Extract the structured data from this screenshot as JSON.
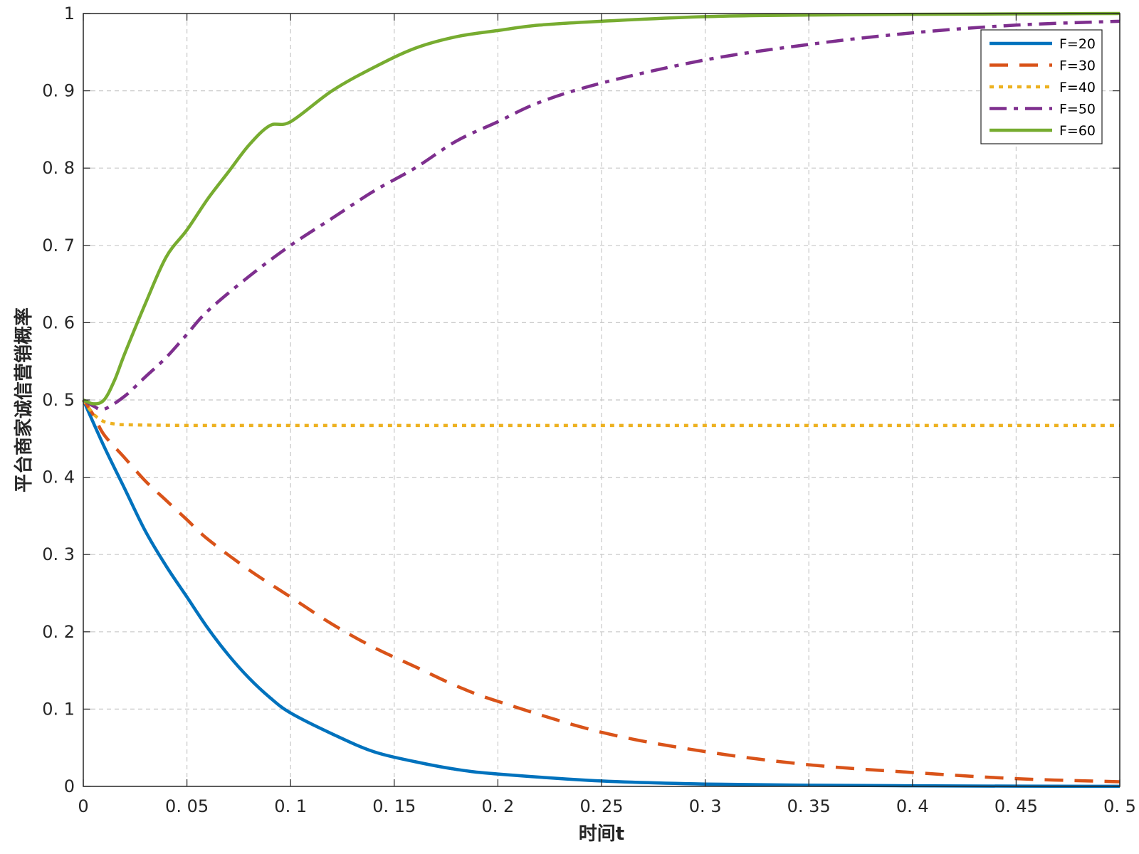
{
  "chart_data": {
    "type": "line",
    "title": "",
    "xlabel": "时间t",
    "ylabel": "平台商家诚信营销概率",
    "xlim": [
      0,
      0.5
    ],
    "ylim": [
      0,
      1
    ],
    "grid": true,
    "legend_position": "top-right",
    "x_ticks": [
      0,
      0.05,
      0.1,
      0.15,
      0.2,
      0.25,
      0.3,
      0.35,
      0.4,
      0.45,
      0.5
    ],
    "x_tick_labels": [
      "0",
      "0. 05",
      "0. 1",
      "0. 15",
      "0. 2",
      "0. 25",
      "0. 3",
      "0. 35",
      "0. 4",
      "0. 45",
      "0. 5"
    ],
    "y_ticks": [
      0,
      0.1,
      0.2,
      0.3,
      0.4,
      0.5,
      0.6,
      0.7,
      0.8,
      0.9,
      1
    ],
    "y_tick_labels": [
      "0",
      "0. 1",
      "0. 2",
      "0. 3",
      "0. 4",
      "0. 5",
      "0. 6",
      "0. 7",
      "0. 8",
      "0. 9",
      "1"
    ],
    "series": [
      {
        "name": "F=20",
        "color": "#0072BD",
        "dash": "solid",
        "x": [
          0,
          0.01,
          0.02,
          0.03,
          0.04,
          0.05,
          0.06,
          0.07,
          0.08,
          0.09,
          0.1,
          0.12,
          0.14,
          0.16,
          0.18,
          0.2,
          0.25,
          0.3,
          0.35,
          0.4,
          0.45,
          0.5
        ],
        "y": [
          0.5,
          0.44,
          0.385,
          0.33,
          0.285,
          0.245,
          0.205,
          0.17,
          0.14,
          0.115,
          0.095,
          0.068,
          0.045,
          0.032,
          0.022,
          0.016,
          0.007,
          0.003,
          0.0015,
          0.0008,
          0.0003,
          0.0001
        ]
      },
      {
        "name": "F=30",
        "color": "#D95319",
        "dash": "dashed",
        "x": [
          0,
          0.005,
          0.01,
          0.02,
          0.03,
          0.04,
          0.05,
          0.06,
          0.08,
          0.1,
          0.12,
          0.14,
          0.16,
          0.18,
          0.2,
          0.25,
          0.3,
          0.35,
          0.4,
          0.45,
          0.5
        ],
        "y": [
          0.5,
          0.48,
          0.455,
          0.425,
          0.395,
          0.37,
          0.345,
          0.32,
          0.28,
          0.245,
          0.21,
          0.18,
          0.155,
          0.13,
          0.11,
          0.07,
          0.045,
          0.028,
          0.018,
          0.01,
          0.006
        ]
      },
      {
        "name": "F=40",
        "color": "#EDB120",
        "dash": "dotted",
        "x": [
          0,
          0.003,
          0.006,
          0.01,
          0.015,
          0.02,
          0.05,
          0.1,
          0.2,
          0.3,
          0.4,
          0.5
        ],
        "y": [
          0.5,
          0.488,
          0.479,
          0.472,
          0.469,
          0.468,
          0.467,
          0.467,
          0.467,
          0.467,
          0.467,
          0.467
        ]
      },
      {
        "name": "F=50",
        "color": "#7E2F8E",
        "dash": "dashdot",
        "x": [
          0,
          0.005,
          0.01,
          0.02,
          0.03,
          0.04,
          0.05,
          0.06,
          0.08,
          0.1,
          0.12,
          0.14,
          0.16,
          0.18,
          0.2,
          0.22,
          0.25,
          0.3,
          0.35,
          0.4,
          0.45,
          0.5
        ],
        "y": [
          0.5,
          0.492,
          0.488,
          0.505,
          0.53,
          0.555,
          0.585,
          0.615,
          0.66,
          0.7,
          0.735,
          0.77,
          0.8,
          0.835,
          0.86,
          0.885,
          0.91,
          0.94,
          0.96,
          0.975,
          0.985,
          0.99
        ]
      },
      {
        "name": "F=60",
        "color": "#77AC30",
        "dash": "solid",
        "x": [
          0,
          0.005,
          0.01,
          0.015,
          0.02,
          0.03,
          0.04,
          0.05,
          0.06,
          0.07,
          0.08,
          0.09,
          0.1,
          0.12,
          0.14,
          0.16,
          0.18,
          0.2,
          0.22,
          0.25,
          0.3,
          0.35,
          0.4,
          0.45,
          0.5
        ],
        "y": [
          0.5,
          0.495,
          0.5,
          0.525,
          0.56,
          0.625,
          0.685,
          0.72,
          0.76,
          0.795,
          0.83,
          0.855,
          0.86,
          0.9,
          0.93,
          0.955,
          0.97,
          0.978,
          0.985,
          0.99,
          0.996,
          0.998,
          0.999,
          0.9995,
          1.0
        ]
      }
    ]
  }
}
